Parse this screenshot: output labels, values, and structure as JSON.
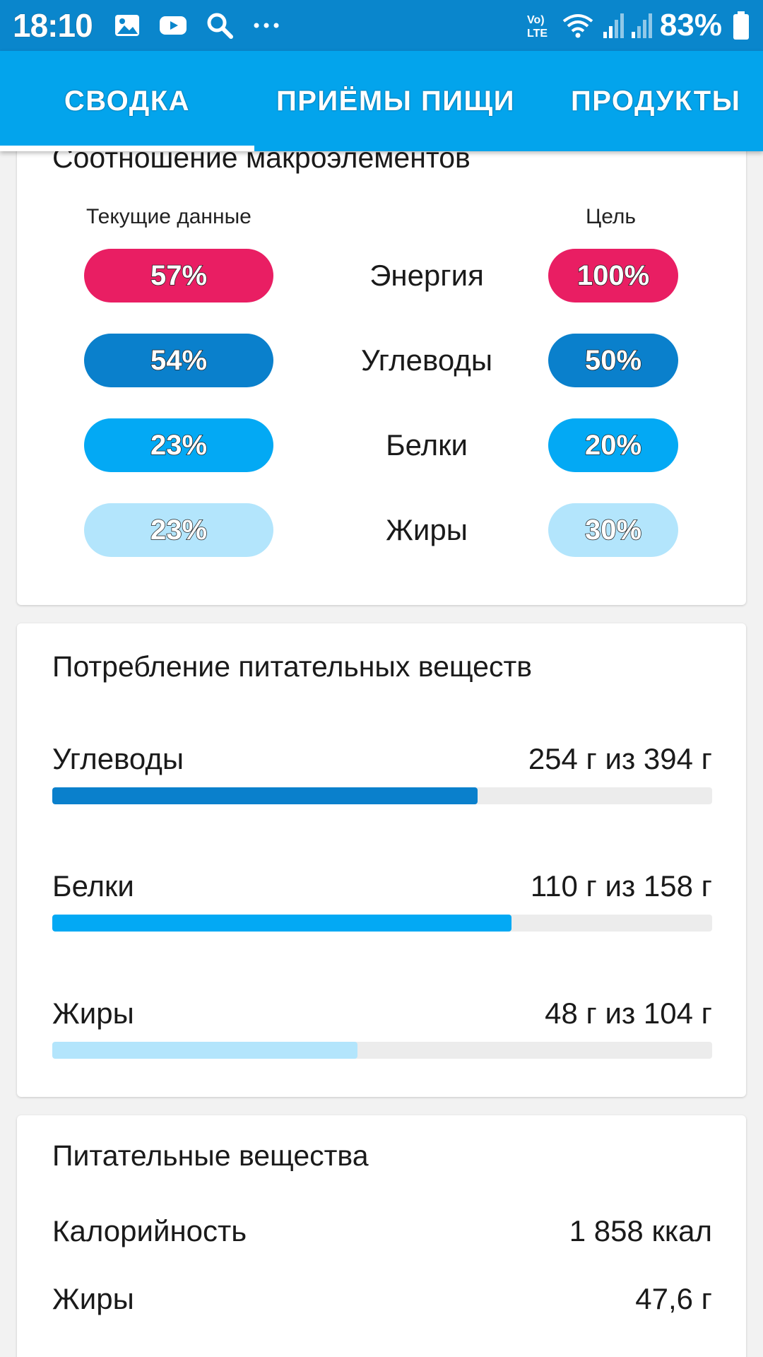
{
  "status_bar": {
    "time": "18:10",
    "network": "VoLTE",
    "battery": "83%",
    "icons": [
      "image-icon",
      "youtube-icon",
      "search-icon",
      "more-dots-icon",
      "volte-icon",
      "wifi-icon",
      "signal-icon",
      "signal-icon",
      "battery-icon"
    ]
  },
  "tabs": [
    {
      "label": "СВОДКА",
      "active": true
    },
    {
      "label": "ПРИЁМЫ ПИЩИ",
      "active": false
    },
    {
      "label": "ПРОДУКТЫ",
      "active": false
    }
  ],
  "macro_ratio": {
    "title": "Соотношение макроэлементов",
    "current_header": "Текущие данные",
    "goal_header": "Цель",
    "rows": [
      {
        "label": "Энергия",
        "current": "57%",
        "goal": "100%",
        "color": "#e91e63"
      },
      {
        "label": "Углеводы",
        "current": "54%",
        "goal": "50%",
        "color": "#0a80cc"
      },
      {
        "label": "Белки",
        "current": "23%",
        "goal": "20%",
        "color": "#03a9f4"
      },
      {
        "label": "Жиры",
        "current": "23%",
        "goal": "30%",
        "color": "#b3e5fc"
      }
    ]
  },
  "intake": {
    "title": "Потребление питательных веществ",
    "items": [
      {
        "name": "Углеводы",
        "value": "254 г из 394 г",
        "fraction": 0.645,
        "color": "#0a80cc"
      },
      {
        "name": "Белки",
        "value": "110 г из 158 г",
        "fraction": 0.696,
        "color": "#03a9f4"
      },
      {
        "name": "Жиры",
        "value": "48 г из 104 г",
        "fraction": 0.462,
        "color": "#b3e5fc"
      }
    ]
  },
  "nutrients": {
    "title": "Питательные вещества",
    "rows": [
      {
        "name": "Калорийность",
        "value": "1 858 ккал"
      },
      {
        "name": "Жиры",
        "value": "47,6 г"
      }
    ]
  }
}
